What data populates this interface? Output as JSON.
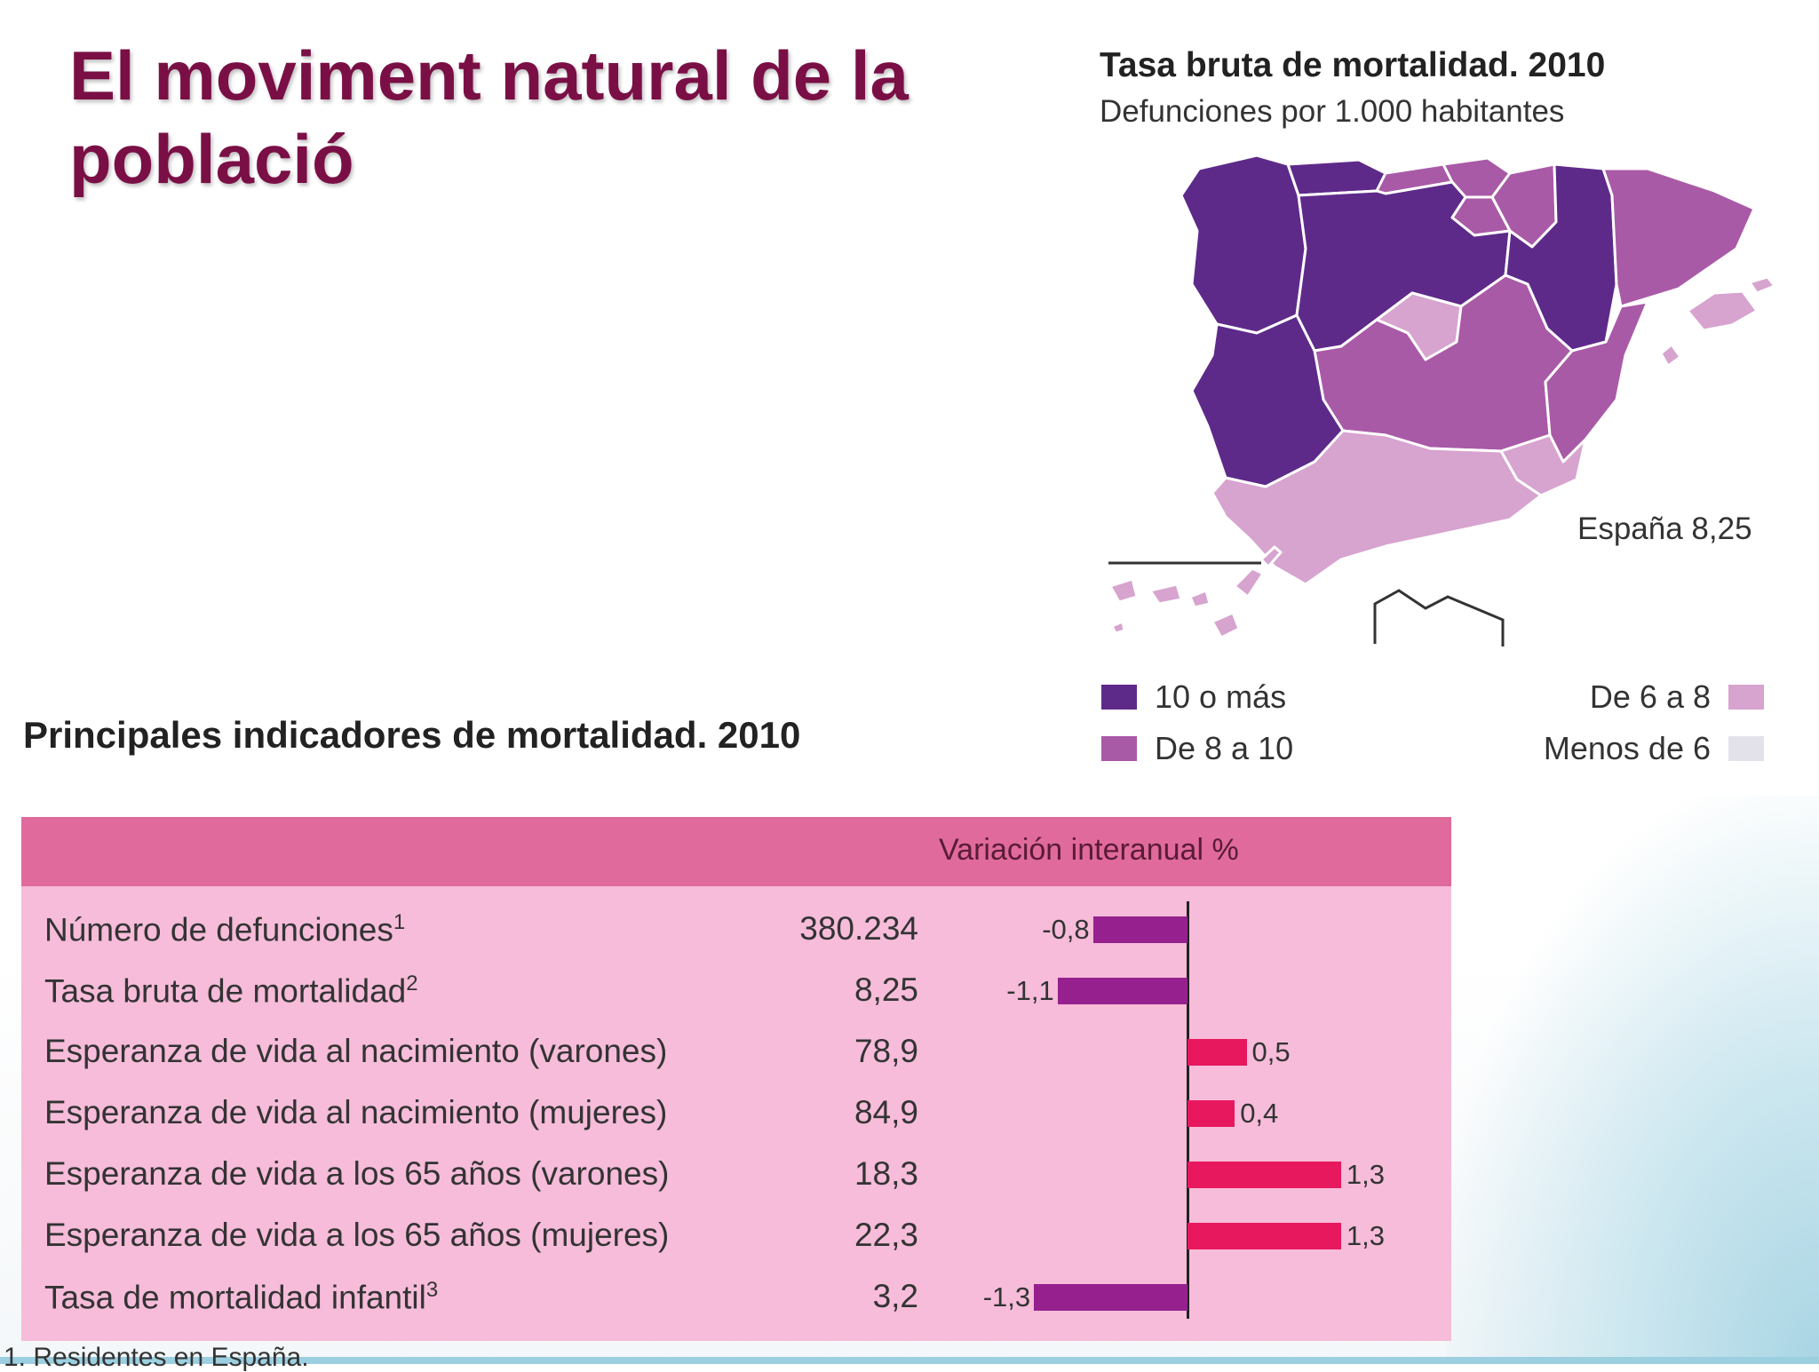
{
  "slide": {
    "title_line1": "El moviment natural de la",
    "title_line2": "població"
  },
  "map": {
    "title": "Tasa bruta de mortalidad. 2010",
    "subtitle": "Defunciones por 1.000 habitantes",
    "espana_label": "España 8,25",
    "colors": {
      "c10": "#5e2a8a",
      "c8": "#a95aa7",
      "c6": "#d7a3cf",
      "cless": "#e3e2ea"
    },
    "legend": [
      {
        "label": "10 o más",
        "color": "#5e2a8a"
      },
      {
        "label": "De 8 a 10",
        "color": "#a95aa7"
      },
      {
        "label": "De 6 a 8",
        "color": "#d7a3cf"
      },
      {
        "label": "Menos de 6",
        "color": "#e3e2ea"
      }
    ]
  },
  "indicators": {
    "title": "Principales indicadores de mortalidad. 2010",
    "header_label": "Variación interanual %",
    "footnote": "1. Residentes en España."
  },
  "chart_data": {
    "type": "bar",
    "orientation": "horizontal",
    "title": "Principales indicadores de mortalidad. 2010",
    "xlabel": "Variación interanual %",
    "xlim": [
      -1.3,
      1.3
    ],
    "categories": [
      {
        "label": "Número de defunciones",
        "sup": "1"
      },
      {
        "label": "Tasa bruta de mortalidad",
        "sup": "2"
      },
      {
        "label": "Esperanza de vida al nacimiento (varones)",
        "sup": ""
      },
      {
        "label": "Esperanza de vida al nacimiento (mujeres)",
        "sup": ""
      },
      {
        "label": "Esperanza de vida a los 65 años (varones)",
        "sup": ""
      },
      {
        "label": "Esperanza de vida a los 65 años (mujeres)",
        "sup": ""
      },
      {
        "label": "Tasa de mortalidad infantil",
        "sup": "3"
      }
    ],
    "level_values": [
      "380.234",
      "8,25",
      "78,9",
      "84,9",
      "18,3",
      "22,3",
      "3,2"
    ],
    "variation": [
      -0.8,
      -1.1,
      0.5,
      0.4,
      1.3,
      1.3,
      -1.3
    ],
    "variation_labels": [
      "-0,8",
      "-1,1",
      "0,5",
      "0,4",
      "1,3",
      "1,3",
      "-1,3"
    ],
    "colors": {
      "negative": "#96208e",
      "positive": "#e8185e"
    }
  }
}
